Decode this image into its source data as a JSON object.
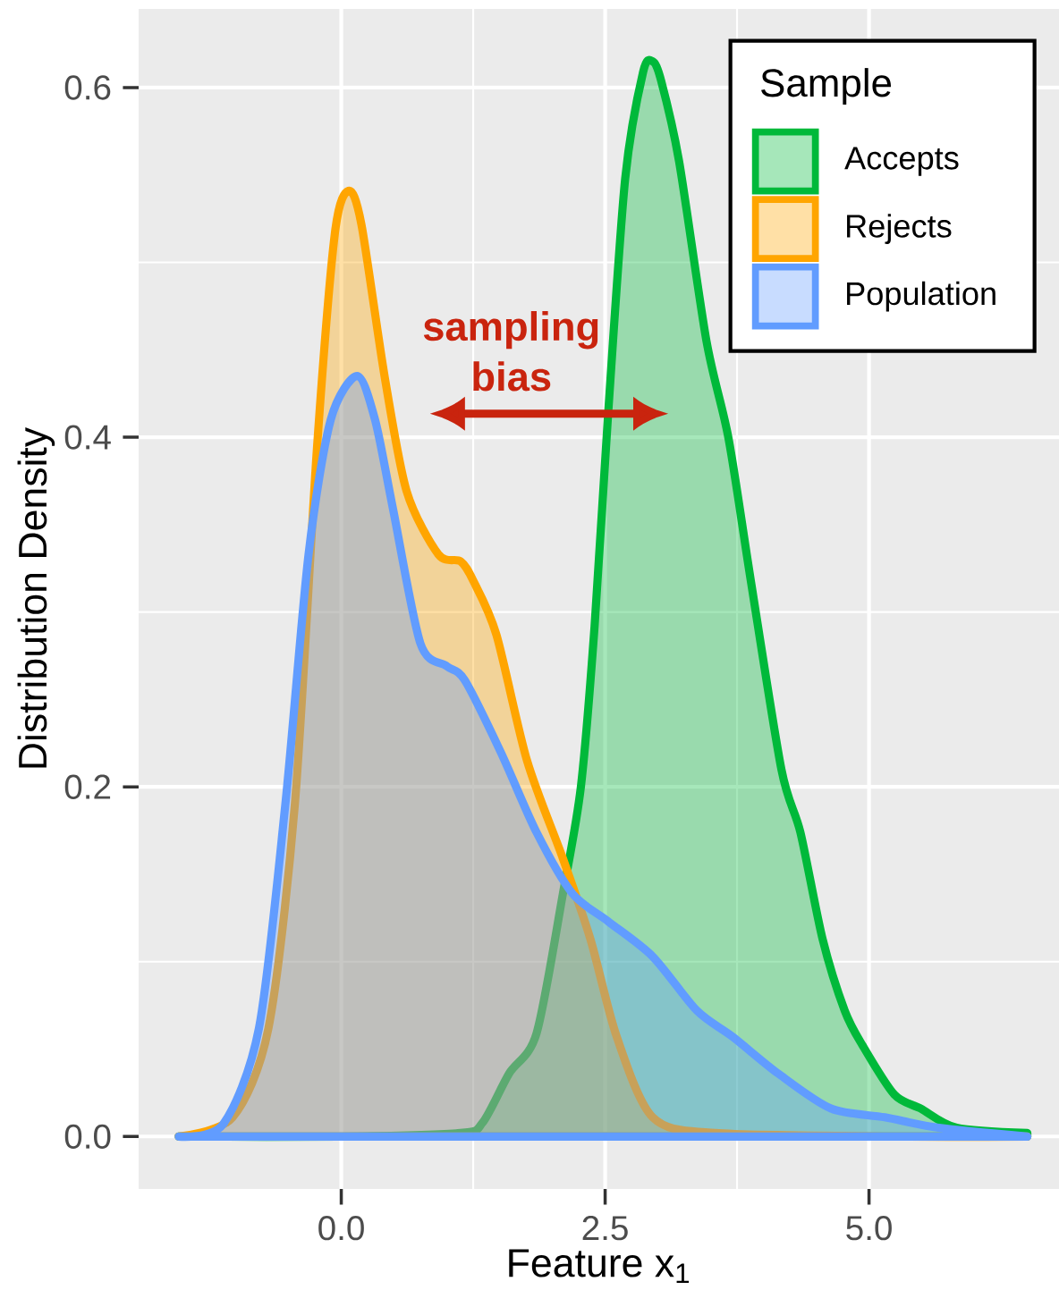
{
  "chart_data": {
    "type": "area",
    "xlabel": "Feature x$_{1}$",
    "ylabel": "Distribution Density",
    "legend_title": "Sample",
    "legend": "top right",
    "grid": true,
    "xlim": [
      -1.92,
      6.8
    ],
    "ylim": [
      -0.03,
      0.645
    ],
    "xticks": [
      {
        "value": 0,
        "label": "0.0"
      },
      {
        "value": 2.5,
        "label": "2.5"
      },
      {
        "value": 5,
        "label": "5.0"
      }
    ],
    "yticks": [
      {
        "value": 0,
        "label": "0.0"
      },
      {
        "value": 0.2,
        "label": "0.2"
      },
      {
        "value": 0.4,
        "label": "0.4"
      },
      {
        "value": 0.6,
        "label": "0.6"
      }
    ],
    "annotations": [
      "**sampling bias**"
    ],
    "series": [
      {
        "name": "Accepts",
        "color": "#00b93a",
        "x": [
          -1.54,
          0,
          1.13,
          1.34,
          1.59,
          1.85,
          2.1,
          2.27,
          2.4,
          2.53,
          2.69,
          2.86,
          2.95,
          3.03,
          3.2,
          3.46,
          3.67,
          3.88,
          4.17,
          4.35,
          4.56,
          4.77,
          4.94,
          5.24,
          5.49,
          5.83,
          6.5
        ],
        "values": [
          0,
          0,
          0.002,
          0.008,
          0.036,
          0.059,
          0.139,
          0.2,
          0.292,
          0.415,
          0.548,
          0.609,
          0.615,
          0.604,
          0.558,
          0.455,
          0.399,
          0.318,
          0.21,
          0.174,
          0.113,
          0.072,
          0.052,
          0.024,
          0.016,
          0.005,
          0.002
        ]
      },
      {
        "name": "Rejects",
        "color": "#ffa500",
        "x": [
          -1.54,
          -1.03,
          -0.69,
          -0.44,
          -0.23,
          -0.06,
          0.07,
          0.19,
          0.41,
          0.62,
          0.92,
          1.13,
          1.25,
          1.47,
          1.76,
          2.1,
          2.36,
          2.61,
          2.95,
          3.54,
          5.24,
          6.5
        ],
        "values": [
          0,
          0.011,
          0.062,
          0.19,
          0.394,
          0.517,
          0.541,
          0.522,
          0.435,
          0.369,
          0.333,
          0.329,
          0.318,
          0.287,
          0.215,
          0.159,
          0.113,
          0.057,
          0.011,
          0.002,
          0,
          0
        ]
      },
      {
        "name": "Population",
        "color": "#619cff",
        "x": [
          -1.54,
          -1.12,
          -0.78,
          -0.53,
          -0.31,
          -0.1,
          0.15,
          0.32,
          0.49,
          0.75,
          1.0,
          1.17,
          1.51,
          1.85,
          2.19,
          2.53,
          2.95,
          3.37,
          3.71,
          4.14,
          4.64,
          5.15,
          5.66,
          6.5
        ],
        "values": [
          0,
          0.007,
          0.062,
          0.19,
          0.333,
          0.41,
          0.435,
          0.41,
          0.359,
          0.282,
          0.269,
          0.261,
          0.22,
          0.174,
          0.139,
          0.123,
          0.103,
          0.072,
          0.057,
          0.036,
          0.016,
          0.011,
          0.005,
          0
        ]
      }
    ]
  }
}
